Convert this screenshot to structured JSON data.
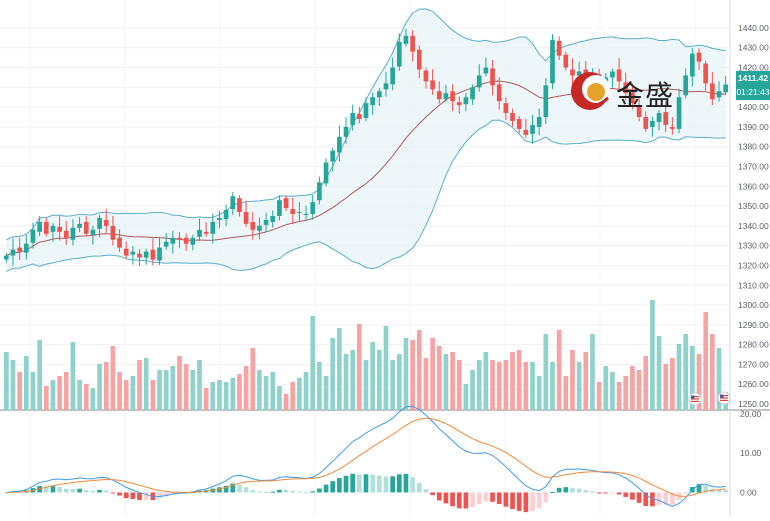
{
  "chart_data": [
    {
      "type": "candlestick",
      "panel": "price",
      "y_ticks": [
        "1440.00",
        "1430.00",
        "1420.00",
        "1410.00",
        "1400.00",
        "1390.00",
        "1380.00",
        "1370.00",
        "1360.00",
        "1350.00",
        "1340.00",
        "1330.00",
        "1320.00",
        "1310.00",
        "1300.00",
        "1290.00",
        "1280.00",
        "1270.00",
        "1260.00",
        "1250.00"
      ],
      "ylim": [
        1248,
        1443
      ],
      "last_price": "1411.42",
      "countdown": "01:21:43",
      "watermark": "金盛",
      "colors": {
        "up": "#26a69a",
        "down": "#ef5350",
        "bb_band": "#5aaec9",
        "bb_mid": "#b05b5b",
        "bb_fill": "#e8f4f7"
      },
      "close": [
        1325,
        1328,
        1327,
        1331,
        1338,
        1342,
        1336,
        1340,
        1337,
        1334,
        1339,
        1341,
        1336,
        1338,
        1344,
        1340,
        1333,
        1329,
        1325,
        1327,
        1324,
        1327,
        1323,
        1329,
        1332,
        1334,
        1333,
        1331,
        1334,
        1338,
        1336,
        1342,
        1344,
        1348,
        1355,
        1347,
        1341,
        1338,
        1340,
        1343,
        1345,
        1353,
        1349,
        1346,
        1347,
        1346,
        1352,
        1362,
        1372,
        1378,
        1385,
        1390,
        1397,
        1394,
        1402,
        1405,
        1408,
        1412,
        1420,
        1433,
        1436,
        1428,
        1419,
        1413,
        1409,
        1404,
        1407,
        1403,
        1401,
        1405,
        1410,
        1416,
        1420,
        1411,
        1403,
        1397,
        1393,
        1389,
        1386,
        1391,
        1395,
        1411,
        1434,
        1426,
        1420,
        1416,
        1418,
        1415,
        1416,
        1414,
        1415,
        1418,
        1413,
        1407,
        1402,
        1395,
        1389,
        1393,
        1397,
        1391,
        1389,
        1405,
        1416,
        1427,
        1423,
        1412,
        1404,
        1408,
        1411.42
      ]
    },
    {
      "type": "bar",
      "panel": "volume",
      "values": [
        29,
        25,
        19,
        27,
        19,
        35,
        12,
        15,
        17,
        19,
        34,
        15,
        13,
        11,
        23,
        24,
        32,
        19,
        15,
        17,
        25,
        26,
        15,
        20,
        20,
        22,
        27,
        23,
        20,
        25,
        11,
        14,
        15,
        14,
        16,
        18,
        22,
        31,
        20,
        17,
        19,
        12,
        8,
        14,
        16,
        19,
        47,
        24,
        17,
        36,
        41,
        28,
        30,
        43,
        25,
        34,
        30,
        42,
        25,
        28,
        36,
        35,
        40,
        26,
        36,
        32,
        28,
        29,
        25,
        13,
        20,
        25,
        29,
        25,
        24,
        25,
        29,
        30,
        24,
        24,
        17,
        38,
        24,
        40,
        17,
        30,
        24,
        29,
        38,
        14,
        22,
        19,
        14,
        17,
        22,
        20,
        27,
        55,
        37,
        23,
        26,
        33,
        38,
        32,
        28,
        49,
        38,
        31,
        9
      ],
      "directions": "per-candle (up=green, down=red)"
    },
    {
      "type": "line",
      "panel": "macd",
      "y_ticks": [
        "20.00",
        "10.00",
        "0.00"
      ],
      "ylim": [
        -6,
        20
      ],
      "series": [
        {
          "key": "macd",
          "color": "#3d9be9"
        },
        {
          "key": "signal",
          "color": "#f08a3a"
        },
        {
          "key": "histogram",
          "color": "mixed"
        }
      ]
    }
  ],
  "icons": {
    "flag_a": "us-flag-icon",
    "flag_b": "us-flag-icon"
  }
}
